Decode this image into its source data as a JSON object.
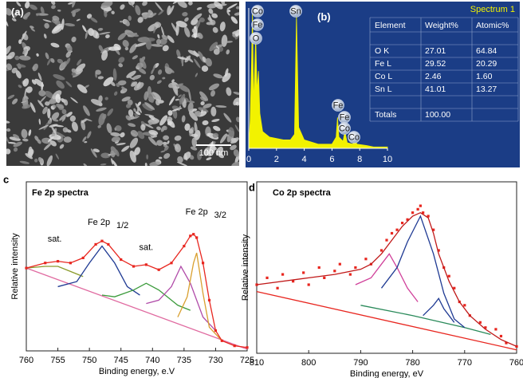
{
  "panel_a": {
    "label": "(a)",
    "scale_bar": "100 nm"
  },
  "panel_b": {
    "label": "(b)",
    "spectrum_title": "Spectrum 1",
    "peak_labels": [
      "Co",
      "Fe",
      "O",
      "Sn",
      "Fe",
      "Fe",
      "Co",
      "Co"
    ],
    "table": {
      "header": [
        "Element",
        "Weight%",
        "Atomic%"
      ],
      "rows": [
        [
          "O K",
          "27.01",
          "64.84"
        ],
        [
          "Fe L",
          "29.52",
          "20.29"
        ],
        [
          "Co L",
          "2.46",
          "1.60"
        ],
        [
          "Sn L",
          "41.01",
          "13.27"
        ],
        [
          "Totals",
          "100.00"
        ]
      ]
    }
  },
  "chart_data": [
    {
      "type": "area",
      "color": "#f2f200",
      "x": [
        0,
        0.1,
        0.2,
        0.27,
        0.35,
        0.5,
        0.6,
        0.7,
        0.8,
        1,
        1.5,
        2,
        2.5,
        3,
        3.3,
        3.44,
        3.6,
        4,
        5,
        6,
        6.3,
        6.4,
        6.5,
        6.8,
        6.93,
        7.1,
        7.5,
        7.65,
        7.8,
        8.5,
        9,
        10
      ],
      "values": [
        0,
        20,
        60,
        97,
        30,
        80,
        40,
        55,
        25,
        12,
        8,
        7,
        6,
        6,
        10,
        95,
        15,
        6,
        3,
        3,
        8,
        22,
        8,
        5,
        12,
        4,
        3,
        6,
        3,
        2,
        1,
        1
      ],
      "xlim": [
        0,
        10
      ],
      "xticks": [
        0,
        2,
        4,
        6,
        8,
        10
      ],
      "ylim": [
        0,
        100
      ]
    },
    {
      "type": "line",
      "panel_label": "c",
      "title": "Fe 2p spectra",
      "x_label": "Binding energy, e.V",
      "y_label": "Relative intensity",
      "xlim": [
        760,
        725
      ],
      "xticks": [
        760,
        755,
        750,
        745,
        740,
        735,
        730,
        725
      ],
      "ylim": [
        0,
        100
      ],
      "annotations": [
        {
          "text": "sat."
        },
        {
          "text": "Fe 2p",
          "sub": "1/2"
        },
        {
          "text": "sat."
        },
        {
          "text": "Fe 2p",
          "sub": "3/2"
        }
      ],
      "series": [
        {
          "color": "#e06aa0",
          "mode": "line",
          "x": [
            760,
            725
          ],
          "values": [
            49,
            1
          ]
        },
        {
          "color": "#8a9a2a",
          "mode": "line",
          "x": [
            760,
            757,
            755,
            753,
            751
          ],
          "values": [
            49,
            50,
            50,
            47,
            44
          ]
        },
        {
          "color": "#1f3a93",
          "mode": "line",
          "x": [
            755,
            752,
            750,
            748,
            746,
            744,
            742
          ],
          "values": [
            38,
            41,
            52,
            62,
            52,
            38,
            33
          ]
        },
        {
          "color": "#3a9a3a",
          "mode": "line",
          "x": [
            748,
            746,
            743,
            741,
            739,
            736,
            734
          ],
          "values": [
            33,
            32,
            36,
            40,
            36,
            27,
            24
          ]
        },
        {
          "color": "#b04aa8",
          "mode": "line",
          "x": [
            741,
            739,
            737,
            735.5,
            734,
            732,
            730
          ],
          "values": [
            28,
            30,
            38,
            50,
            40,
            20,
            12
          ]
        },
        {
          "color": "#d9a030",
          "mode": "line",
          "x": [
            736,
            734.5,
            733.5,
            733,
            732,
            731,
            729
          ],
          "values": [
            20,
            32,
            52,
            58,
            34,
            14,
            6
          ]
        },
        {
          "color": "#e8261f",
          "mode": "line+points",
          "x": [
            760,
            757,
            755,
            753,
            751,
            749,
            748,
            747,
            745,
            743,
            741,
            739,
            737,
            735,
            734,
            733.5,
            733,
            732,
            731,
            730,
            729,
            727,
            725
          ],
          "values": [
            49,
            52,
            53,
            52,
            55,
            63,
            65,
            63,
            54,
            50,
            51,
            48,
            52,
            62,
            68,
            69,
            67,
            52,
            30,
            12,
            6,
            3,
            2
          ]
        }
      ]
    },
    {
      "type": "line",
      "panel_label": "d",
      "title": "Co 2p spectra",
      "x_label": "Binding energy, eV",
      "y_label": "Relative intensity",
      "xlim": [
        810,
        760
      ],
      "xticks": [
        810,
        800,
        790,
        780,
        770,
        760
      ],
      "ylim": [
        0,
        100
      ],
      "series": [
        {
          "color": "#e8261f",
          "mode": "line",
          "x": [
            810,
            760
          ],
          "values": [
            36,
            2
          ]
        },
        {
          "color": "#2a8a5a",
          "mode": "line",
          "x": [
            790,
            780,
            770,
            765
          ],
          "values": [
            28,
            22,
            15,
            11
          ]
        },
        {
          "color": "#d0409a",
          "mode": "line",
          "x": [
            791,
            788,
            786,
            784.5,
            783,
            781,
            779
          ],
          "values": [
            40,
            44,
            52,
            58,
            50,
            38,
            30
          ]
        },
        {
          "color": "#1f3a93",
          "mode": "line",
          "x": [
            786,
            783,
            781,
            778.5,
            776,
            774,
            772,
            770
          ],
          "values": [
            38,
            50,
            65,
            80,
            58,
            35,
            20,
            15
          ]
        },
        {
          "color": "#1f3a93",
          "mode": "line",
          "x": [
            778,
            776,
            775,
            774,
            772
          ],
          "values": [
            22,
            28,
            32,
            26,
            18
          ]
        },
        {
          "color": "#e8261f",
          "mode": "points",
          "x": [
            810,
            808,
            806,
            805,
            803,
            801,
            800,
            798,
            797,
            795,
            794,
            792,
            791,
            789,
            788,
            786,
            785,
            784,
            783,
            782,
            781,
            780,
            779,
            778.5,
            778,
            777,
            776,
            775,
            774,
            773,
            772,
            771,
            770,
            769,
            767,
            766,
            764,
            763,
            762,
            760
          ],
          "values": [
            40,
            44,
            38,
            46,
            42,
            47,
            40,
            50,
            44,
            48,
            52,
            46,
            50,
            55,
            52,
            60,
            66,
            70,
            72,
            76,
            78,
            82,
            84,
            86,
            82,
            80,
            72,
            60,
            50,
            45,
            38,
            30,
            28,
            22,
            18,
            15,
            14,
            10,
            6,
            4
          ]
        },
        {
          "color": "#c01818",
          "mode": "line",
          "x": [
            810,
            800,
            795,
            790,
            788,
            786,
            784,
            782,
            780,
            778.5,
            777,
            776,
            775,
            773,
            771,
            769,
            766,
            763,
            760
          ],
          "values": [
            40,
            44,
            46,
            49,
            52,
            58,
            66,
            74,
            80,
            82,
            79,
            70,
            58,
            42,
            30,
            22,
            14,
            8,
            4
          ]
        }
      ]
    }
  ]
}
